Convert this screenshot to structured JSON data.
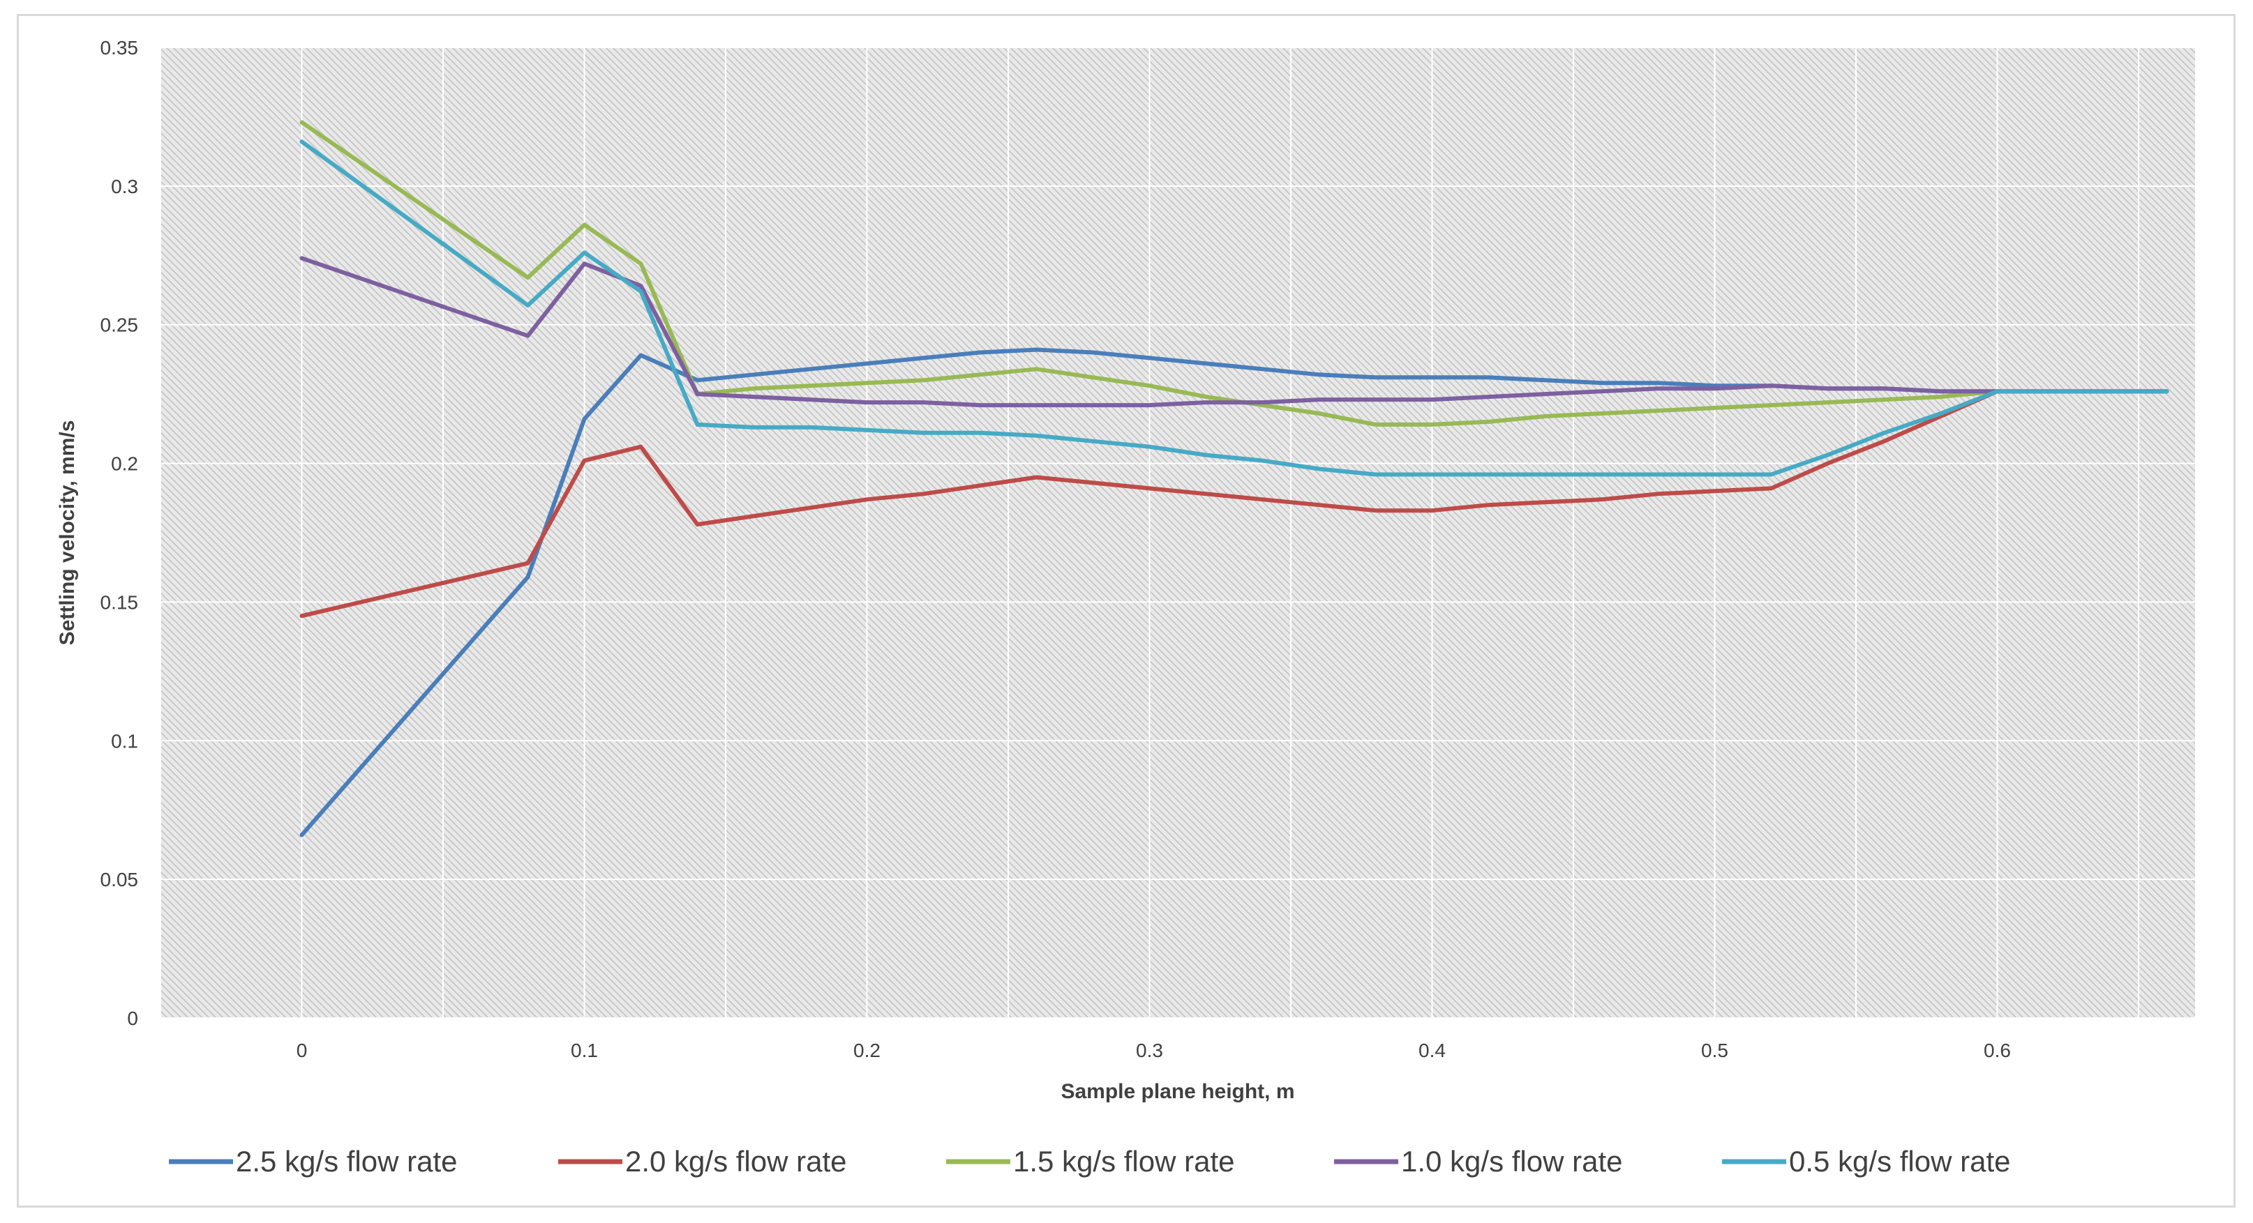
{
  "chart_data": {
    "type": "line",
    "title": "",
    "xlabel": "Sample plane height, m",
    "ylabel": "Settling velocity, mm/s",
    "xlim": [
      -0.05,
      0.67
    ],
    "ylim": [
      0,
      0.35
    ],
    "x_ticks": [
      0,
      0.1,
      0.2,
      0.3,
      0.4,
      0.5,
      0.6
    ],
    "x_tick_labels": [
      "0",
      "0.1",
      "0.2",
      "0.3",
      "0.4",
      "0.5",
      "0.6"
    ],
    "y_ticks": [
      0,
      0.05,
      0.1,
      0.15,
      0.2,
      0.25,
      0.3,
      0.35
    ],
    "y_tick_labels": [
      "0",
      "0.05",
      "0.1",
      "0.15",
      "0.2",
      "0.25",
      "0.3",
      "0.35"
    ],
    "grid": true,
    "legend_position": "bottom",
    "x": [
      0,
      0.08,
      0.1,
      0.12,
      0.14,
      0.16,
      0.18,
      0.2,
      0.22,
      0.24,
      0.26,
      0.28,
      0.3,
      0.32,
      0.34,
      0.36,
      0.38,
      0.4,
      0.42,
      0.44,
      0.46,
      0.48,
      0.5,
      0.52,
      0.54,
      0.56,
      0.58,
      0.6,
      0.66
    ],
    "series": [
      {
        "name": "2.5 kg/s flow rate",
        "color": "#4a7ebb",
        "values": [
          0.066,
          0.159,
          0.216,
          0.239,
          0.23,
          0.232,
          0.234,
          0.236,
          0.238,
          0.24,
          0.241,
          0.24,
          0.238,
          0.236,
          0.234,
          0.232,
          0.231,
          0.231,
          0.231,
          0.23,
          0.229,
          0.229,
          0.228,
          0.228,
          0.227,
          0.227,
          0.226,
          0.226,
          0.226
        ]
      },
      {
        "name": "2.0 kg/s flow rate",
        "color": "#be4b48",
        "values": [
          0.145,
          0.164,
          0.201,
          0.206,
          0.178,
          0.181,
          0.184,
          0.187,
          0.189,
          0.192,
          0.195,
          0.193,
          0.191,
          0.189,
          0.187,
          0.185,
          0.183,
          0.183,
          0.185,
          0.186,
          0.187,
          0.189,
          0.19,
          0.191,
          0.2,
          0.208,
          0.217,
          0.226,
          0.226
        ]
      },
      {
        "name": "1.5 kg/s flow rate",
        "color": "#98b954",
        "values": [
          0.323,
          0.267,
          0.286,
          0.272,
          0.225,
          0.227,
          0.228,
          0.229,
          0.23,
          0.232,
          0.234,
          0.231,
          0.228,
          0.224,
          0.221,
          0.218,
          0.214,
          0.214,
          0.215,
          0.217,
          0.218,
          0.219,
          0.22,
          0.221,
          0.222,
          0.223,
          0.224,
          0.226,
          0.226
        ]
      },
      {
        "name": "1.0 kg/s flow rate",
        "color": "#7d60a0",
        "values": [
          0.274,
          0.246,
          0.272,
          0.264,
          0.225,
          0.224,
          0.223,
          0.222,
          0.222,
          0.221,
          0.221,
          0.221,
          0.221,
          0.222,
          0.222,
          0.223,
          0.223,
          0.223,
          0.224,
          0.225,
          0.226,
          0.227,
          0.227,
          0.228,
          0.227,
          0.227,
          0.226,
          0.226,
          0.226
        ]
      },
      {
        "name": "0.5 kg/s flow rate",
        "color": "#46aac5",
        "values": [
          0.316,
          0.257,
          0.276,
          0.262,
          0.214,
          0.213,
          0.213,
          0.212,
          0.211,
          0.211,
          0.21,
          0.208,
          0.206,
          0.203,
          0.201,
          0.198,
          0.196,
          0.196,
          0.196,
          0.196,
          0.196,
          0.196,
          0.196,
          0.196,
          0.203,
          0.211,
          0.218,
          0.226,
          0.226
        ]
      }
    ]
  }
}
